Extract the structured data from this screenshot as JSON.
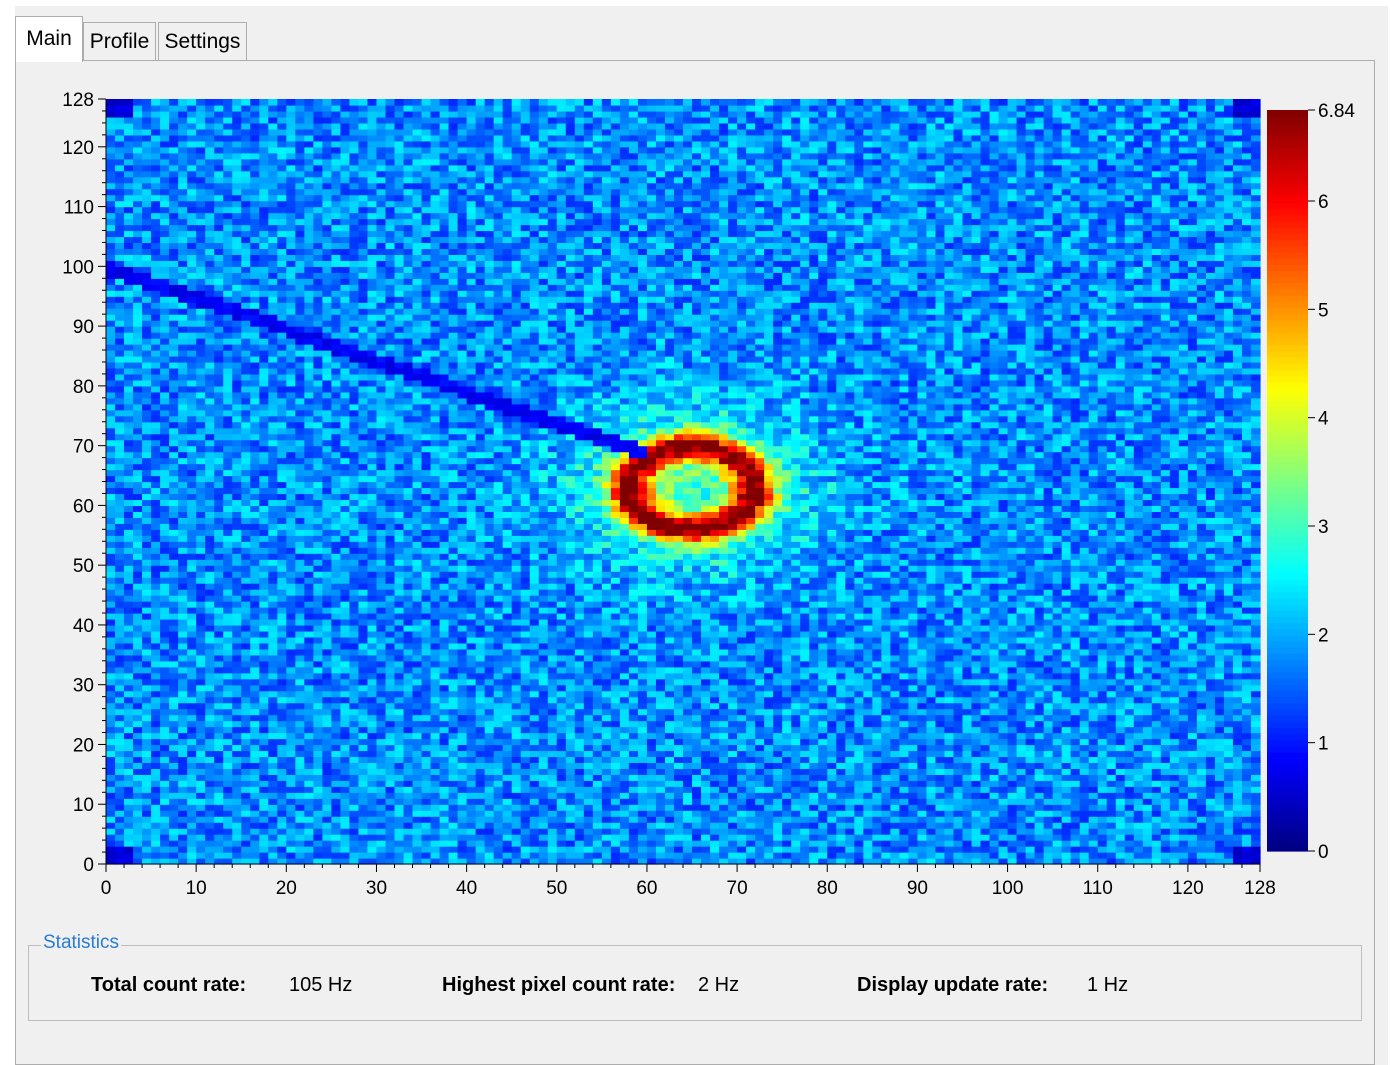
{
  "tabs": [
    {
      "label": "Main",
      "active": true
    },
    {
      "label": "Profile",
      "active": false
    },
    {
      "label": "Settings",
      "active": false
    }
  ],
  "chart_data": {
    "type": "heatmap",
    "x_range": [
      0,
      128
    ],
    "y_range": [
      0,
      128
    ],
    "x_ticks": [
      "0",
      "10",
      "20",
      "30",
      "40",
      "50",
      "60",
      "70",
      "80",
      "90",
      "100",
      "110",
      "120",
      "128"
    ],
    "y_ticks": [
      "0",
      "10",
      "20",
      "30",
      "40",
      "50",
      "60",
      "70",
      "80",
      "90",
      "100",
      "110",
      "120",
      "128"
    ],
    "colorbar_range": [
      0,
      6.84
    ],
    "colorbar_ticks": [
      "0",
      "1",
      "2",
      "3",
      "4",
      "5",
      "6",
      "6.84"
    ],
    "colormap": "jet",
    "features": {
      "ring_center": [
        65,
        63
      ],
      "ring_radius": 7,
      "ring_peak_value": 6.5,
      "background_value": 1.8,
      "shadow_line_start": [
        0,
        100
      ],
      "shadow_line_end": [
        59,
        69
      ]
    },
    "grid": false
  },
  "statistics": {
    "legend": "Statistics",
    "total_count_rate_label": "Total count rate:",
    "total_count_rate_value": "105 Hz",
    "highest_pixel_label": "Highest pixel count rate:",
    "highest_pixel_value": "2 Hz",
    "display_update_label": "Display update rate:",
    "display_update_value": "1 Hz"
  }
}
